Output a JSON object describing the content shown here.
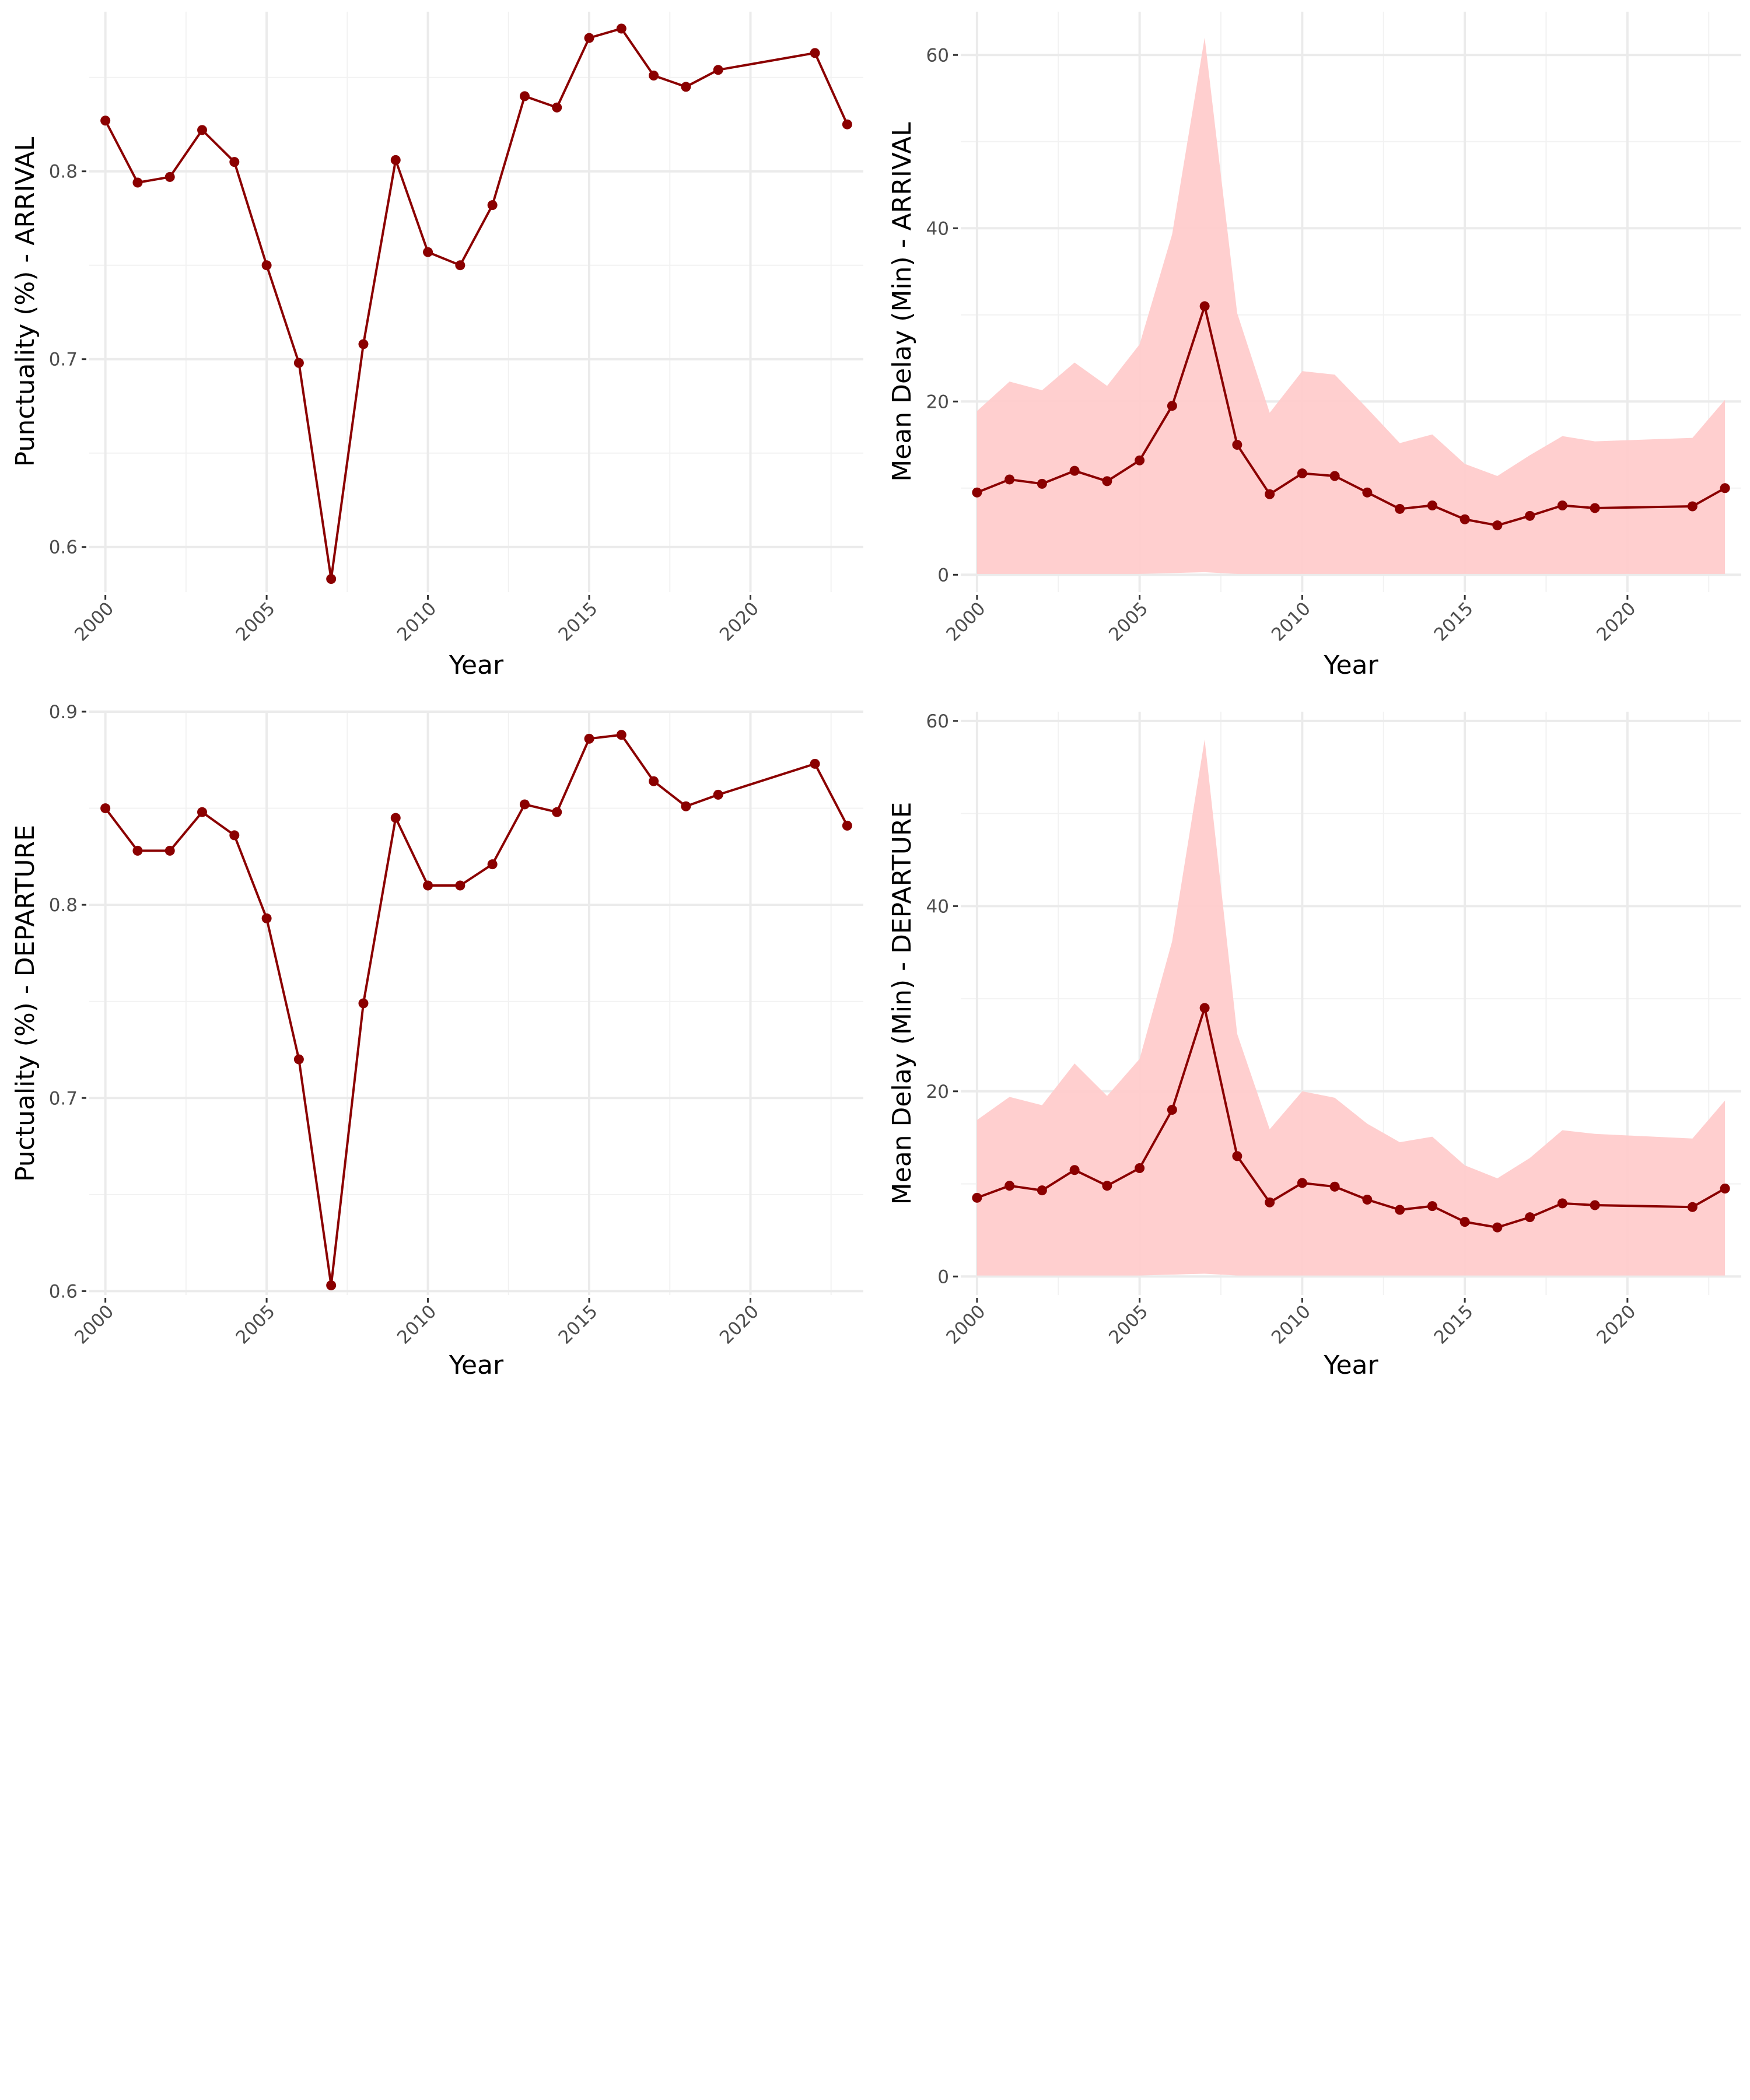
{
  "chart_data": [
    {
      "type": "line",
      "panel": "top-left",
      "xlabel": "Year",
      "ylabel": "Punctuality (%) - ARRIVAL",
      "xlim": [
        1999.5,
        2023.5
      ],
      "ylim": [
        0.576,
        0.885
      ],
      "x_ticks": [
        2000,
        2005,
        2010,
        2015,
        2020
      ],
      "y_ticks": [
        0.6,
        0.7,
        0.8
      ],
      "grid": true,
      "line_color": "#8b0000",
      "series": [
        {
          "x": [
            2000,
            2001,
            2002,
            2003,
            2004,
            2005,
            2006,
            2007,
            2008,
            2009,
            2010,
            2011,
            2012,
            2013,
            2014,
            2015,
            2016,
            2017,
            2018,
            2019,
            2022,
            2023
          ],
          "values": [
            0.827,
            0.794,
            0.797,
            0.822,
            0.805,
            0.75,
            0.698,
            0.583,
            0.708,
            0.806,
            0.757,
            0.75,
            0.782,
            0.84,
            0.834,
            0.871,
            0.876,
            0.851,
            0.845,
            0.854,
            0.863,
            0.825
          ]
        }
      ]
    },
    {
      "type": "area",
      "panel": "top-right",
      "xlabel": "Year",
      "ylabel": "Mean Delay (Min) - ARRIVAL",
      "xlim": [
        1999.5,
        2023.5
      ],
      "ylim": [
        -2,
        65
      ],
      "x_ticks": [
        2000,
        2005,
        2010,
        2015,
        2020
      ],
      "y_ticks": [
        0,
        20,
        40,
        60
      ],
      "grid": true,
      "line_color": "#8b0000",
      "band_color": "#ffcccc",
      "series": [
        {
          "x": [
            2000,
            2001,
            2002,
            2003,
            2004,
            2005,
            2006,
            2007,
            2008,
            2009,
            2010,
            2011,
            2012,
            2013,
            2014,
            2015,
            2016,
            2017,
            2018,
            2019,
            2022,
            2023
          ],
          "values": [
            9.5,
            11.0,
            10.5,
            12.0,
            10.8,
            13.2,
            19.5,
            31.0,
            15.0,
            9.3,
            11.7,
            11.4,
            9.5,
            7.6,
            8.0,
            6.4,
            5.7,
            6.8,
            8.0,
            7.7,
            7.9,
            10.0
          ],
          "upper": [
            18.9,
            22.3,
            21.3,
            24.5,
            21.8,
            26.6,
            39.3,
            62.0,
            30.2,
            18.7,
            23.5,
            23.1,
            19.2,
            15.2,
            16.2,
            12.8,
            11.4,
            13.8,
            16.0,
            15.4,
            15.8,
            20.2
          ],
          "lower": [
            0.1,
            0.1,
            0.1,
            0.1,
            0.1,
            0.1,
            0.2,
            0.3,
            0.1,
            0.1,
            0.1,
            0.1,
            0.1,
            0.1,
            0.1,
            0.1,
            0.1,
            0.1,
            0.1,
            0.1,
            0.1,
            0.1
          ]
        }
      ]
    },
    {
      "type": "line",
      "panel": "bottom-left",
      "xlabel": "Year",
      "ylabel": "Puctuality (%) - DEPARTURE",
      "xlim": [
        1999.5,
        2023.5
      ],
      "ylim": [
        0.598,
        0.9
      ],
      "x_ticks": [
        2000,
        2005,
        2010,
        2015,
        2020
      ],
      "y_ticks": [
        0.6,
        0.7,
        0.8,
        0.9
      ],
      "grid": true,
      "line_color": "#8b0000",
      "series": [
        {
          "x": [
            2000,
            2001,
            2002,
            2003,
            2004,
            2005,
            2006,
            2007,
            2008,
            2009,
            2010,
            2011,
            2012,
            2013,
            2014,
            2015,
            2016,
            2017,
            2018,
            2019,
            2022,
            2023
          ],
          "values": [
            0.85,
            0.828,
            0.828,
            0.848,
            0.836,
            0.793,
            0.72,
            0.603,
            0.749,
            0.845,
            0.81,
            0.81,
            0.821,
            0.852,
            0.848,
            0.886,
            0.888,
            0.864,
            0.851,
            0.857,
            0.873,
            0.841
          ]
        }
      ]
    },
    {
      "type": "area",
      "panel": "bottom-right",
      "xlabel": "Year",
      "ylabel": "Mean Delay (Min) - DEPARTURE",
      "xlim": [
        1999.5,
        2023.5
      ],
      "ylim": [
        -2,
        61
      ],
      "x_ticks": [
        2000,
        2005,
        2010,
        2015,
        2020
      ],
      "y_ticks": [
        0,
        20,
        40,
        60
      ],
      "grid": true,
      "line_color": "#8b0000",
      "band_color": "#ffcccc",
      "series": [
        {
          "x": [
            2000,
            2001,
            2002,
            2003,
            2004,
            2005,
            2006,
            2007,
            2008,
            2009,
            2010,
            2011,
            2012,
            2013,
            2014,
            2015,
            2016,
            2017,
            2018,
            2019,
            2022,
            2023
          ],
          "values": [
            8.5,
            9.8,
            9.3,
            11.5,
            9.8,
            11.7,
            18.0,
            29.0,
            13.0,
            8.0,
            10.1,
            9.7,
            8.3,
            7.2,
            7.6,
            5.9,
            5.3,
            6.4,
            7.9,
            7.7,
            7.5,
            9.5
          ],
          "upper": [
            16.9,
            19.4,
            18.5,
            23.0,
            19.5,
            23.5,
            36.2,
            58.0,
            26.2,
            15.9,
            20.0,
            19.3,
            16.5,
            14.5,
            15.1,
            12.0,
            10.6,
            12.8,
            15.8,
            15.4,
            14.9,
            19.0
          ],
          "lower": [
            0.1,
            0.1,
            0.1,
            0.1,
            0.1,
            0.1,
            0.2,
            0.3,
            0.1,
            0.1,
            0.1,
            0.1,
            0.1,
            0.1,
            0.1,
            0.1,
            0.1,
            0.1,
            0.1,
            0.1,
            0.1,
            0.1
          ]
        }
      ]
    }
  ]
}
